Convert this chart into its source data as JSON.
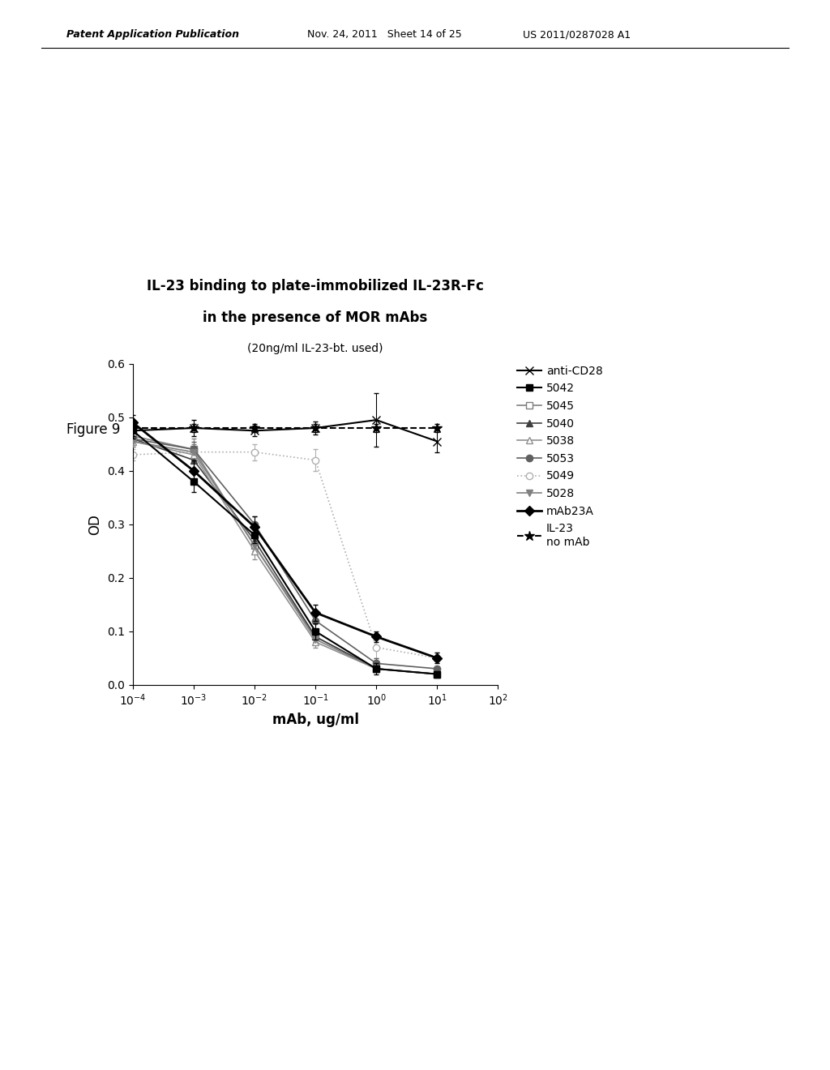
{
  "title_line1": "IL-23 binding to plate-immobilized IL-23R-Fc",
  "title_line2": "in the presence of MOR mAbs",
  "title_line3": "(20ng/ml IL-23-bt. used)",
  "xlabel": "mAb, ug/ml",
  "ylabel": "OD",
  "figure_label": "Figure 9",
  "header_left": "Patent Application Publication",
  "header_mid": "Nov. 24, 2011   Sheet 14 of 25",
  "header_right": "US 2011/0287028 A1",
  "xlim": [
    0.0001,
    100.0
  ],
  "ylim": [
    0.0,
    0.6
  ],
  "yticks": [
    0.0,
    0.1,
    0.2,
    0.3,
    0.4,
    0.5,
    0.6
  ],
  "xticks": [
    0.0001,
    0.001,
    0.01,
    0.1,
    1.0,
    10.0,
    100.0
  ],
  "series": {
    "anti-CD28": {
      "x": [
        0.0001,
        0.001,
        0.01,
        0.1,
        1.0,
        10.0
      ],
      "y": [
        0.475,
        0.48,
        0.475,
        0.48,
        0.495,
        0.455
      ],
      "yerr": [
        0.01,
        0.015,
        0.01,
        0.012,
        0.05,
        0.02
      ],
      "color": "#000000",
      "linestyle": "-",
      "marker": "x",
      "markersize": 7,
      "linewidth": 1.5,
      "markerfacecolor": "none",
      "markeredgecolor": "#000000",
      "zorder": 5
    },
    "5042": {
      "x": [
        0.0001,
        0.001,
        0.01,
        0.1,
        1.0,
        10.0
      ],
      "y": [
        0.475,
        0.38,
        0.28,
        0.1,
        0.03,
        0.02
      ],
      "yerr": [
        0.015,
        0.02,
        0.015,
        0.015,
        0.01,
        0.005
      ],
      "color": "#000000",
      "linestyle": "-",
      "marker": "s",
      "markersize": 6,
      "linewidth": 1.5,
      "markerfacecolor": "#000000",
      "markeredgecolor": "#000000",
      "zorder": 4
    },
    "5045": {
      "x": [
        0.0001,
        0.001,
        0.01,
        0.1,
        1.0,
        10.0
      ],
      "y": [
        0.465,
        0.44,
        0.26,
        0.09,
        0.03,
        0.02
      ],
      "yerr": [
        0.01,
        0.02,
        0.015,
        0.01,
        0.005,
        0.005
      ],
      "color": "#808080",
      "linestyle": "-",
      "marker": "s",
      "markersize": 6,
      "linewidth": 1.2,
      "markerfacecolor": "white",
      "markeredgecolor": "#808080",
      "zorder": 3
    },
    "5040": {
      "x": [
        0.0001,
        0.001,
        0.01,
        0.1,
        1.0,
        10.0
      ],
      "y": [
        0.46,
        0.42,
        0.27,
        0.09,
        0.03,
        0.02
      ],
      "yerr": [
        0.01,
        0.015,
        0.02,
        0.01,
        0.005,
        0.005
      ],
      "color": "#404040",
      "linestyle": "-",
      "marker": "^",
      "markersize": 6,
      "linewidth": 1.2,
      "markerfacecolor": "#404040",
      "markeredgecolor": "#404040",
      "zorder": 3
    },
    "5038": {
      "x": [
        0.0001,
        0.001,
        0.01,
        0.1,
        1.0,
        10.0
      ],
      "y": [
        0.455,
        0.43,
        0.25,
        0.08,
        0.03,
        0.02
      ],
      "yerr": [
        0.01,
        0.015,
        0.015,
        0.01,
        0.005,
        0.005
      ],
      "color": "#909090",
      "linestyle": "-",
      "marker": "^",
      "markersize": 6,
      "linewidth": 1.2,
      "markerfacecolor": "white",
      "markeredgecolor": "#909090",
      "zorder": 3
    },
    "5053": {
      "x": [
        0.0001,
        0.001,
        0.01,
        0.1,
        1.0,
        10.0
      ],
      "y": [
        0.46,
        0.44,
        0.3,
        0.12,
        0.04,
        0.03
      ],
      "yerr": [
        0.01,
        0.015,
        0.015,
        0.015,
        0.01,
        0.005
      ],
      "color": "#606060",
      "linestyle": "-",
      "marker": "o",
      "markersize": 6,
      "linewidth": 1.2,
      "markerfacecolor": "#606060",
      "markeredgecolor": "#606060",
      "zorder": 3
    },
    "5049": {
      "x": [
        0.0001,
        0.001,
        0.01,
        0.1,
        1.0,
        10.0
      ],
      "y": [
        0.43,
        0.435,
        0.435,
        0.42,
        0.07,
        0.05
      ],
      "yerr": [
        0.01,
        0.01,
        0.015,
        0.02,
        0.02,
        0.01
      ],
      "color": "#b0b0b0",
      "linestyle": "dotted",
      "marker": "o",
      "markersize": 6,
      "linewidth": 1.2,
      "markerfacecolor": "white",
      "markeredgecolor": "#b0b0b0",
      "zorder": 2
    },
    "5028": {
      "x": [
        0.0001,
        0.001,
        0.01,
        0.1,
        1.0,
        10.0
      ],
      "y": [
        0.455,
        0.435,
        0.26,
        0.085,
        0.03,
        0.02
      ],
      "yerr": [
        0.01,
        0.015,
        0.015,
        0.01,
        0.005,
        0.005
      ],
      "color": "#808080",
      "linestyle": "-",
      "marker": "v",
      "markersize": 6,
      "linewidth": 1.2,
      "markerfacecolor": "#808080",
      "markeredgecolor": "#808080",
      "zorder": 3
    },
    "mAb23A": {
      "x": [
        0.0001,
        0.001,
        0.01,
        0.1,
        1.0,
        10.0
      ],
      "y": [
        0.49,
        0.4,
        0.295,
        0.135,
        0.09,
        0.05
      ],
      "yerr": [
        0.015,
        0.02,
        0.02,
        0.015,
        0.01,
        0.01
      ],
      "color": "#000000",
      "linestyle": "-",
      "marker": "D",
      "markersize": 6,
      "linewidth": 2.0,
      "markerfacecolor": "#000000",
      "markeredgecolor": "#000000",
      "zorder": 6
    },
    "IL-23\nno mAb": {
      "x": [
        0.0001,
        0.001,
        0.01,
        0.1,
        1.0,
        10.0
      ],
      "y": [
        0.48,
        0.48,
        0.48,
        0.48,
        0.48,
        0.48
      ],
      "yerr": [
        0.008,
        0.008,
        0.008,
        0.008,
        0.008,
        0.008
      ],
      "color": "#000000",
      "linestyle": "--",
      "marker": "*",
      "markersize": 9,
      "linewidth": 1.5,
      "markerfacecolor": "#000000",
      "markeredgecolor": "#000000",
      "zorder": 5
    }
  },
  "background_color": "#ffffff"
}
